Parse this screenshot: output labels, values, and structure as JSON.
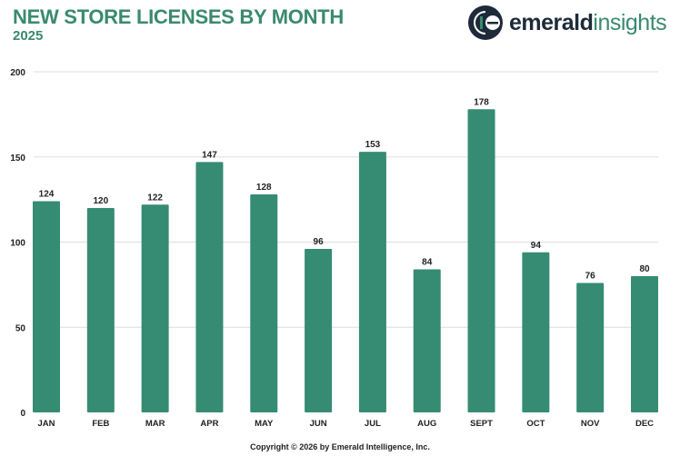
{
  "chart_data": {
    "type": "bar",
    "title": "NEW STORE LICENSES BY MONTH",
    "subtitle": "2025",
    "categories": [
      "JAN",
      "FEB",
      "MAR",
      "APR",
      "MAY",
      "JUN",
      "JUL",
      "AUG",
      "SEPT",
      "OCT",
      "NOV",
      "DEC"
    ],
    "values": [
      124,
      120,
      122,
      147,
      128,
      96,
      153,
      84,
      178,
      94,
      76,
      80
    ],
    "xlabel": "",
    "ylabel": "",
    "ylim": [
      0,
      200
    ],
    "yticks": [
      0,
      50,
      100,
      150,
      200
    ],
    "grid": true,
    "data_labels": true,
    "bar_color": "#358c73"
  },
  "logo": {
    "part1": "emerald",
    "part2": "insights"
  },
  "footer": "Copyright © 2026 by Emerald Intelligence, Inc."
}
